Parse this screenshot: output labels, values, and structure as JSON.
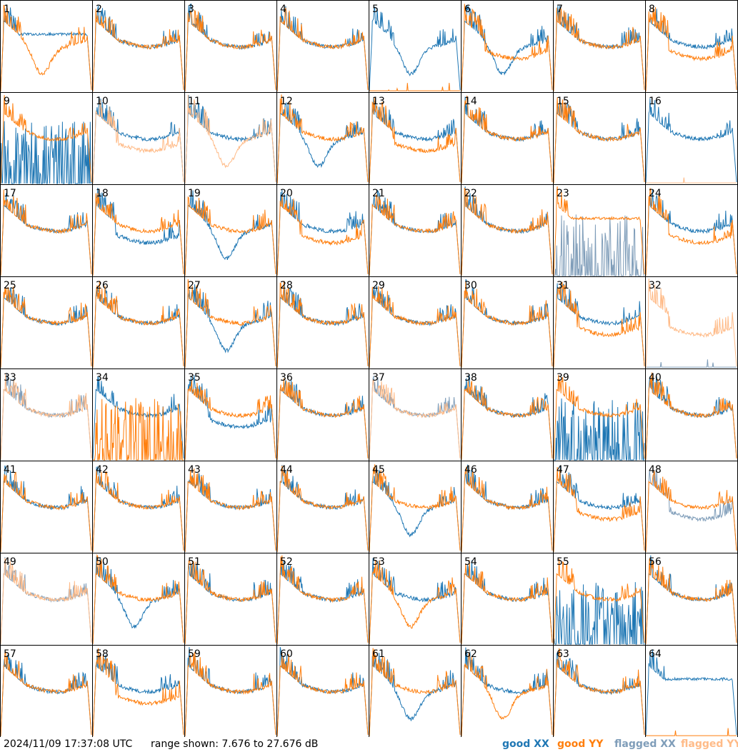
{
  "footer": {
    "timestamp": "2024/11/09 17:37:08 UTC",
    "range_text": "range shown: 7.676 to 27.676 dB"
  },
  "legend": [
    {
      "label": "good XX",
      "color": "#1f77b4"
    },
    {
      "label": "good YY",
      "color": "#ff7f0e"
    },
    {
      "label": "flagged XX",
      "color": "#7f9db9"
    },
    {
      "label": "flagged YY",
      "color": "#ffbb88"
    }
  ],
  "colors": {
    "good_xx": "#1f77b4",
    "good_yy": "#ff7f0e",
    "flagged_xx": "#7f9db9",
    "flagged_yy": "#ffbb88",
    "panel_border": "#000000"
  },
  "chart_data": {
    "type": "line",
    "layout": "8x8 small multiples",
    "ylim": [
      7.676,
      27.676
    ],
    "yunit": "dB",
    "series_names": [
      "good XX",
      "good YY",
      "flagged XX",
      "flagged YY"
    ],
    "panels": [
      {
        "label": "1",
        "xx": "good",
        "yy": "good",
        "xx_shape": "flat",
        "yy_shape": "dip"
      },
      {
        "label": "2",
        "xx": "good",
        "yy": "good",
        "xx_shape": "normal",
        "yy_shape": "normal"
      },
      {
        "label": "3",
        "xx": "good",
        "yy": "good",
        "xx_shape": "normal",
        "yy_shape": "normal"
      },
      {
        "label": "4",
        "xx": "good",
        "yy": "good",
        "xx_shape": "normal",
        "yy_shape": "normal"
      },
      {
        "label": "5",
        "xx": "good",
        "yy": "good",
        "xx_shape": "dip",
        "yy_shape": "dead"
      },
      {
        "label": "6",
        "xx": "good",
        "yy": "good",
        "xx_shape": "dip",
        "yy_shape": "low"
      },
      {
        "label": "7",
        "xx": "good",
        "yy": "good",
        "xx_shape": "normal",
        "yy_shape": "normal"
      },
      {
        "label": "8",
        "xx": "good",
        "yy": "good",
        "xx_shape": "normal",
        "yy_shape": "low"
      },
      {
        "label": "9",
        "xx": "good",
        "yy": "good",
        "xx_shape": "spiky",
        "yy_shape": "normal"
      },
      {
        "label": "10",
        "xx": "good",
        "yy": "flagged",
        "xx_shape": "normal",
        "yy_shape": "low"
      },
      {
        "label": "11",
        "xx": "good",
        "yy": "flagged",
        "xx_shape": "normal",
        "yy_shape": "dip"
      },
      {
        "label": "12",
        "xx": "good",
        "yy": "good",
        "xx_shape": "dip",
        "yy_shape": "normal"
      },
      {
        "label": "13",
        "xx": "good",
        "yy": "good",
        "xx_shape": "normal",
        "yy_shape": "low"
      },
      {
        "label": "14",
        "xx": "good",
        "yy": "good",
        "xx_shape": "normal",
        "yy_shape": "normal"
      },
      {
        "label": "15",
        "xx": "good",
        "yy": "good",
        "xx_shape": "normal",
        "yy_shape": "normal"
      },
      {
        "label": "16",
        "xx": "good",
        "yy": "flagged",
        "xx_shape": "normal",
        "yy_shape": "dead"
      },
      {
        "label": "17",
        "xx": "good",
        "yy": "good",
        "xx_shape": "normal",
        "yy_shape": "normal"
      },
      {
        "label": "18",
        "xx": "good",
        "yy": "good",
        "xx_shape": "low",
        "yy_shape": "normal"
      },
      {
        "label": "19",
        "xx": "good",
        "yy": "good",
        "xx_shape": "dip",
        "yy_shape": "normal"
      },
      {
        "label": "20",
        "xx": "good",
        "yy": "good",
        "xx_shape": "normal",
        "yy_shape": "low"
      },
      {
        "label": "21",
        "xx": "good",
        "yy": "good",
        "xx_shape": "normal",
        "yy_shape": "normal"
      },
      {
        "label": "22",
        "xx": "good",
        "yy": "good",
        "xx_shape": "normal",
        "yy_shape": "normal"
      },
      {
        "label": "23",
        "xx": "flagged",
        "yy": "good",
        "xx_shape": "spiky",
        "yy_shape": "flat"
      },
      {
        "label": "24",
        "xx": "good",
        "yy": "good",
        "xx_shape": "normal",
        "yy_shape": "low"
      },
      {
        "label": "25",
        "xx": "good",
        "yy": "good",
        "xx_shape": "normal",
        "yy_shape": "normal"
      },
      {
        "label": "26",
        "xx": "good",
        "yy": "good",
        "xx_shape": "normal",
        "yy_shape": "normal"
      },
      {
        "label": "27",
        "xx": "good",
        "yy": "good",
        "xx_shape": "dip",
        "yy_shape": "normal"
      },
      {
        "label": "28",
        "xx": "good",
        "yy": "good",
        "xx_shape": "normal",
        "yy_shape": "normal"
      },
      {
        "label": "29",
        "xx": "good",
        "yy": "good",
        "xx_shape": "normal",
        "yy_shape": "normal"
      },
      {
        "label": "30",
        "xx": "good",
        "yy": "good",
        "xx_shape": "normal",
        "yy_shape": "normal"
      },
      {
        "label": "31",
        "xx": "good",
        "yy": "good",
        "xx_shape": "normal",
        "yy_shape": "low"
      },
      {
        "label": "32",
        "xx": "flagged",
        "yy": "flagged",
        "xx_shape": "dead",
        "yy_shape": "low"
      },
      {
        "label": "33",
        "xx": "flagged",
        "yy": "flagged",
        "xx_shape": "normal",
        "yy_shape": "normal"
      },
      {
        "label": "34",
        "xx": "good",
        "yy": "good",
        "xx_shape": "normal",
        "yy_shape": "spiky"
      },
      {
        "label": "35",
        "xx": "good",
        "yy": "good",
        "xx_shape": "low",
        "yy_shape": "normal"
      },
      {
        "label": "36",
        "xx": "good",
        "yy": "good",
        "xx_shape": "normal",
        "yy_shape": "normal"
      },
      {
        "label": "37",
        "xx": "flagged",
        "yy": "flagged",
        "xx_shape": "normal",
        "yy_shape": "normal"
      },
      {
        "label": "38",
        "xx": "good",
        "yy": "good",
        "xx_shape": "normal",
        "yy_shape": "normal"
      },
      {
        "label": "39",
        "xx": "good",
        "yy": "good",
        "xx_shape": "spiky",
        "yy_shape": "normal"
      },
      {
        "label": "40",
        "xx": "good",
        "yy": "good",
        "xx_shape": "normal",
        "yy_shape": "normal"
      },
      {
        "label": "41",
        "xx": "good",
        "yy": "good",
        "xx_shape": "normal",
        "yy_shape": "normal"
      },
      {
        "label": "42",
        "xx": "good",
        "yy": "good",
        "xx_shape": "normal",
        "yy_shape": "normal"
      },
      {
        "label": "43",
        "xx": "good",
        "yy": "good",
        "xx_shape": "normal",
        "yy_shape": "normal"
      },
      {
        "label": "44",
        "xx": "good",
        "yy": "good",
        "xx_shape": "normal",
        "yy_shape": "normal"
      },
      {
        "label": "45",
        "xx": "good",
        "yy": "good",
        "xx_shape": "dip",
        "yy_shape": "normal"
      },
      {
        "label": "46",
        "xx": "good",
        "yy": "good",
        "xx_shape": "normal",
        "yy_shape": "normal"
      },
      {
        "label": "47",
        "xx": "good",
        "yy": "good",
        "xx_shape": "normal",
        "yy_shape": "low"
      },
      {
        "label": "48",
        "xx": "flagged",
        "yy": "good",
        "xx_shape": "low",
        "yy_shape": "normal"
      },
      {
        "label": "49",
        "xx": "flagged",
        "yy": "flagged",
        "xx_shape": "normal",
        "yy_shape": "normal"
      },
      {
        "label": "50",
        "xx": "good",
        "yy": "good",
        "xx_shape": "dip",
        "yy_shape": "normal"
      },
      {
        "label": "51",
        "xx": "good",
        "yy": "good",
        "xx_shape": "normal",
        "yy_shape": "normal"
      },
      {
        "label": "52",
        "xx": "good",
        "yy": "good",
        "xx_shape": "normal",
        "yy_shape": "normal"
      },
      {
        "label": "53",
        "xx": "good",
        "yy": "good",
        "xx_shape": "normal",
        "yy_shape": "dip"
      },
      {
        "label": "54",
        "xx": "good",
        "yy": "good",
        "xx_shape": "normal",
        "yy_shape": "normal"
      },
      {
        "label": "55",
        "xx": "good",
        "yy": "good",
        "xx_shape": "spiky",
        "yy_shape": "normal"
      },
      {
        "label": "56",
        "xx": "good",
        "yy": "good",
        "xx_shape": "normal",
        "yy_shape": "normal"
      },
      {
        "label": "57",
        "xx": "good",
        "yy": "good",
        "xx_shape": "normal",
        "yy_shape": "normal"
      },
      {
        "label": "58",
        "xx": "good",
        "yy": "good",
        "xx_shape": "normal",
        "yy_shape": "low"
      },
      {
        "label": "59",
        "xx": "good",
        "yy": "good",
        "xx_shape": "normal",
        "yy_shape": "normal"
      },
      {
        "label": "60",
        "xx": "good",
        "yy": "good",
        "xx_shape": "normal",
        "yy_shape": "normal"
      },
      {
        "label": "61",
        "xx": "good",
        "yy": "good",
        "xx_shape": "dip",
        "yy_shape": "normal"
      },
      {
        "label": "62",
        "xx": "good",
        "yy": "good",
        "xx_shape": "normal",
        "yy_shape": "dip"
      },
      {
        "label": "63",
        "xx": "good",
        "yy": "good",
        "xx_shape": "normal",
        "yy_shape": "normal"
      },
      {
        "label": "64",
        "xx": "good",
        "yy": "good",
        "xx_shape": "flat",
        "yy_shape": "dead"
      }
    ]
  }
}
